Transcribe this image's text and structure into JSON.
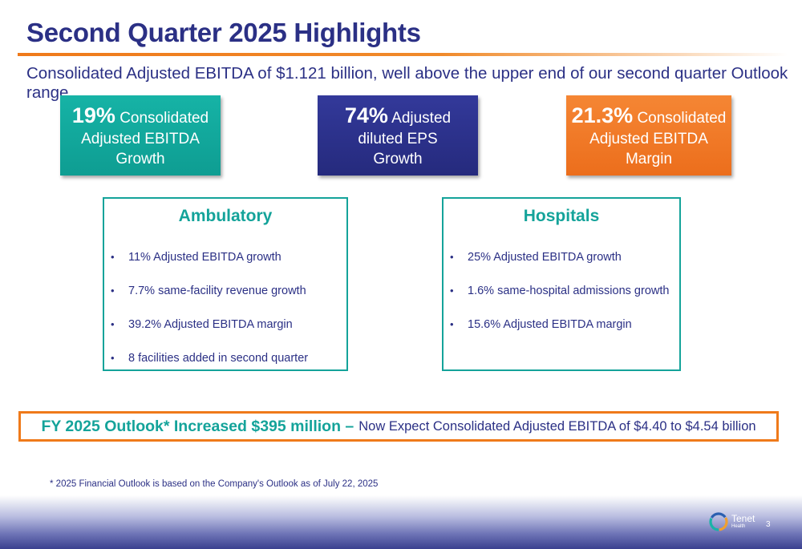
{
  "header": {
    "title": "Second Quarter 2025 Highlights",
    "subtitle": "Consolidated Adjusted EBITDA of $1.121 billion, well above the upper end of our second quarter Outlook range"
  },
  "kpis": [
    {
      "value": "19%",
      "line1": "Consolidated",
      "line2": "Adjusted EBITDA",
      "line3": "Growth",
      "color": "#14a89c"
    },
    {
      "value": "74%",
      "line1": "Adjusted",
      "line2": "diluted EPS",
      "line3": "Growth",
      "color": "#2b3085"
    },
    {
      "value": "21.3%",
      "line1": "Consolidated",
      "line2": "Adjusted EBITDA",
      "line3": "Margin",
      "color": "#f07a24"
    }
  ],
  "panels": {
    "ambulatory": {
      "title": "Ambulatory",
      "items": [
        "11% Adjusted EBITDA growth",
        "7.7% same-facility revenue growth",
        "39.2% Adjusted EBITDA margin",
        "8 facilities added in second quarter"
      ]
    },
    "hospitals": {
      "title": "Hospitals",
      "items": [
        "25% Adjusted EBITDA growth",
        "1.6% same-hospital admissions growth",
        "15.6% Adjusted EBITDA margin"
      ]
    }
  },
  "outlook": {
    "highlight": "FY 2025 Outlook* Increased $395 million –",
    "detail": "Now Expect Consolidated Adjusted EBITDA of $4.40 to $4.54 billion"
  },
  "footnote": "* 2025 Financial Outlook is based on the Company's Outlook as of July 22, 2025",
  "footer": {
    "logo_name": "Tenet",
    "logo_sub": "Health",
    "page_number": "3"
  },
  "colors": {
    "navy": "#2b3085",
    "teal": "#14a39a",
    "orange": "#ef7a1a"
  }
}
